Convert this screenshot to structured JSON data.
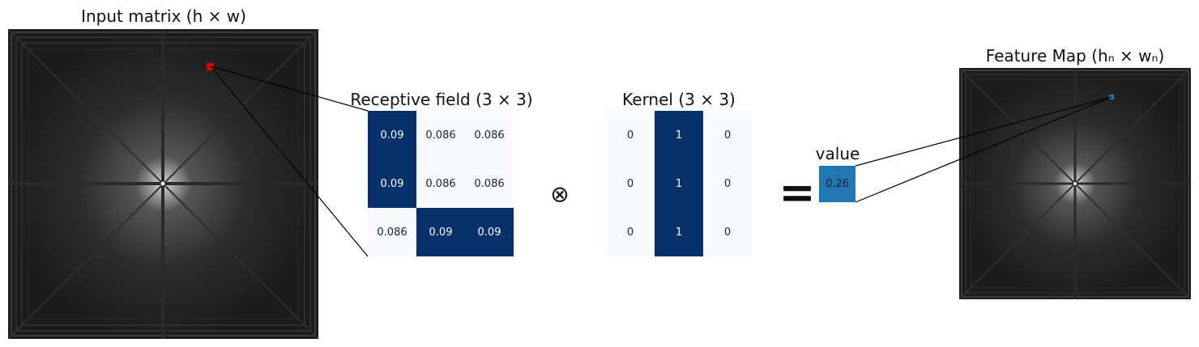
{
  "titles": {
    "input_matrix": "Input matrix",
    "input_matrix_dims": "(h × w)",
    "receptive_field": "Receptive field (3 × 3)",
    "kernel": "Kernel (3 × 3)",
    "value": "value",
    "feature_map": "Feature Map",
    "feature_map_dims": "(hₙ × wₙ)"
  },
  "receptive_field": [
    [
      "0.09",
      "0.086",
      "0.086"
    ],
    [
      "0.09",
      "0.086",
      "0.086"
    ],
    [
      "0.086",
      "0.09",
      "0.09"
    ]
  ],
  "receptive_field_highlight": [
    [
      true,
      false,
      false
    ],
    [
      true,
      false,
      false
    ],
    [
      false,
      true,
      true
    ]
  ],
  "kernel": [
    [
      "0",
      "1",
      "0"
    ],
    [
      "0",
      "1",
      "0"
    ],
    [
      "0",
      "1",
      "0"
    ]
  ],
  "kernel_highlight": [
    [
      false,
      true,
      false
    ],
    [
      false,
      true,
      false
    ],
    [
      false,
      true,
      false
    ]
  ],
  "operators": {
    "convolve": "⊗",
    "equals": "="
  },
  "result_value": "0.26",
  "colors": {
    "dark_cell": "#08306b",
    "light_cell": "#f7fbff",
    "value_box": "#2077b4",
    "input_marker": "#e00000",
    "output_marker": "#1f77b4",
    "image_bg": "#1a1a1a"
  }
}
